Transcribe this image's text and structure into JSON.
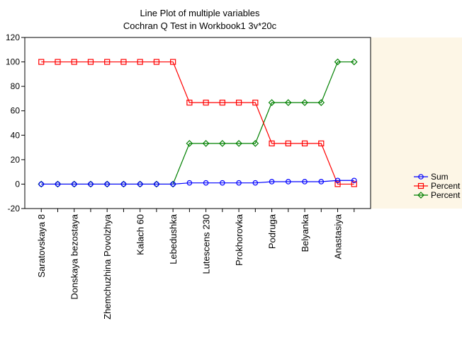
{
  "chart_data": {
    "type": "line",
    "title": "Line Plot of multiple variables",
    "subtitle": "Cochran Q Test in Workbook1 3v*20c",
    "xlabel": "",
    "ylabel": "",
    "ylim": [
      -20,
      120
    ],
    "yticks": [
      -20,
      0,
      20,
      40,
      60,
      80,
      100,
      120
    ],
    "x_count": 20,
    "x_tick_labels": [
      {
        "index": 1,
        "label": "Saratovskaya 8"
      },
      {
        "index": 3,
        "label": "Donskaya bezostaya"
      },
      {
        "index": 5,
        "label": "Zhemchuzhina Povolzhya"
      },
      {
        "index": 7,
        "label": "Kalach 60"
      },
      {
        "index": 9,
        "label": "Lebedushka"
      },
      {
        "index": 11,
        "label": "Lutescens 230"
      },
      {
        "index": 13,
        "label": "Prokhorovka"
      },
      {
        "index": 15,
        "label": "Podruga"
      },
      {
        "index": 17,
        "label": "Belyanka"
      },
      {
        "index": 19,
        "label": "Anastasiya"
      }
    ],
    "grid": false,
    "legend_position": "right",
    "series": [
      {
        "name": "Sum",
        "color": "#0000ff",
        "marker": "circle",
        "values": [
          0,
          0,
          0,
          0,
          0,
          0,
          0,
          0,
          0,
          1,
          1,
          1,
          1,
          1,
          2,
          2,
          2,
          2,
          3,
          3
        ]
      },
      {
        "name": "Percent",
        "color": "#ff0000",
        "marker": "square",
        "values": [
          100,
          100,
          100,
          100,
          100,
          100,
          100,
          100,
          100,
          66.7,
          66.7,
          66.7,
          66.7,
          66.7,
          33.3,
          33.3,
          33.3,
          33.3,
          0,
          0
        ]
      },
      {
        "name": "Percent",
        "color": "#008000",
        "marker": "diamond",
        "values": [
          0,
          0,
          0,
          0,
          0,
          0,
          0,
          0,
          0,
          33.3,
          33.3,
          33.3,
          33.3,
          33.3,
          66.7,
          66.7,
          66.7,
          66.7,
          100,
          100
        ]
      }
    ]
  }
}
